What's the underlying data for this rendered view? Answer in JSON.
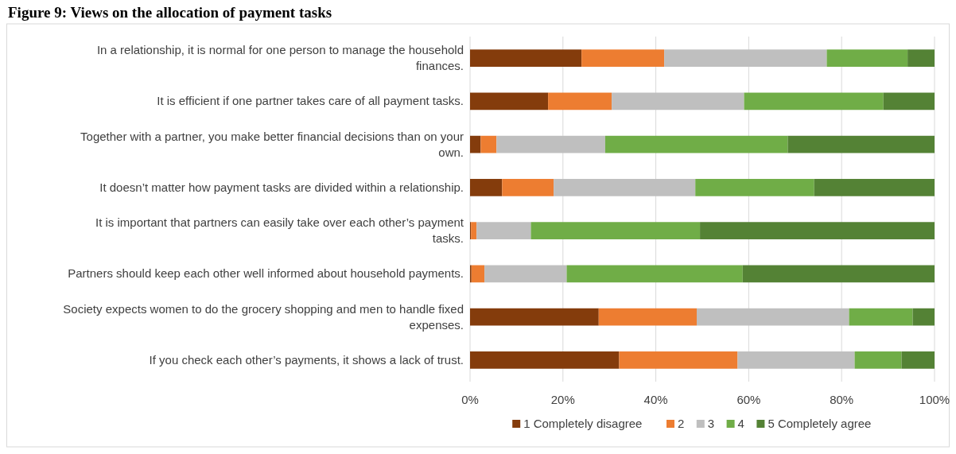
{
  "chart_data": {
    "type": "bar",
    "orientation": "horizontal",
    "stacked": true,
    "title": "Figure 9: Views on the allocation of payment tasks",
    "categories": [
      "In a relationship, it is normal for one person to manage the household finances.",
      "It is efficient if one partner takes care of all payment tasks.",
      "Together with a partner, you make better financial decisions than on your own.",
      "It doesn’t matter how payment tasks are divided within a relationship.",
      "It is important that partners can easily take over each other’s payment tasks.",
      "Partners should keep each other well informed about household payments.",
      "Society expects women to do the grocery shopping and men to handle fixed expenses.",
      "If you check each other’s payments, it shows a lack of trust."
    ],
    "series": [
      {
        "name": "1 Completely disagree",
        "color": "#843c0c",
        "values": [
          24,
          16.8,
          2.3,
          6.9,
          0.2,
          0.3,
          27.7,
          32.1
        ]
      },
      {
        "name": "2",
        "color": "#ed7d31",
        "values": [
          17.8,
          13.7,
          3.4,
          11.1,
          1.2,
          2.8,
          21.1,
          25.5
        ]
      },
      {
        "name": "3",
        "color": "#bfbfbf",
        "values": [
          35,
          28.5,
          23.4,
          30.5,
          11.7,
          17.7,
          32.8,
          25.2
        ]
      },
      {
        "name": "4",
        "color": "#70ad47",
        "values": [
          17.4,
          30,
          39.3,
          25.6,
          36.4,
          37.9,
          13.7,
          10.1
        ]
      },
      {
        "name": "5 Completely agree",
        "color": "#548235",
        "values": [
          5.8,
          11,
          31.6,
          25.9,
          50.5,
          41.3,
          4.7,
          7.1
        ]
      }
    ],
    "xlim": [
      0,
      100
    ],
    "xticks": [
      {
        "value": 0,
        "label": "0%"
      },
      {
        "value": 20,
        "label": "20%"
      },
      {
        "value": 40,
        "label": "40%"
      },
      {
        "value": 60,
        "label": "60%"
      },
      {
        "value": 80,
        "label": "80%"
      },
      {
        "value": 100,
        "label": "100%"
      }
    ],
    "grid": "x",
    "legend": "bottom"
  }
}
